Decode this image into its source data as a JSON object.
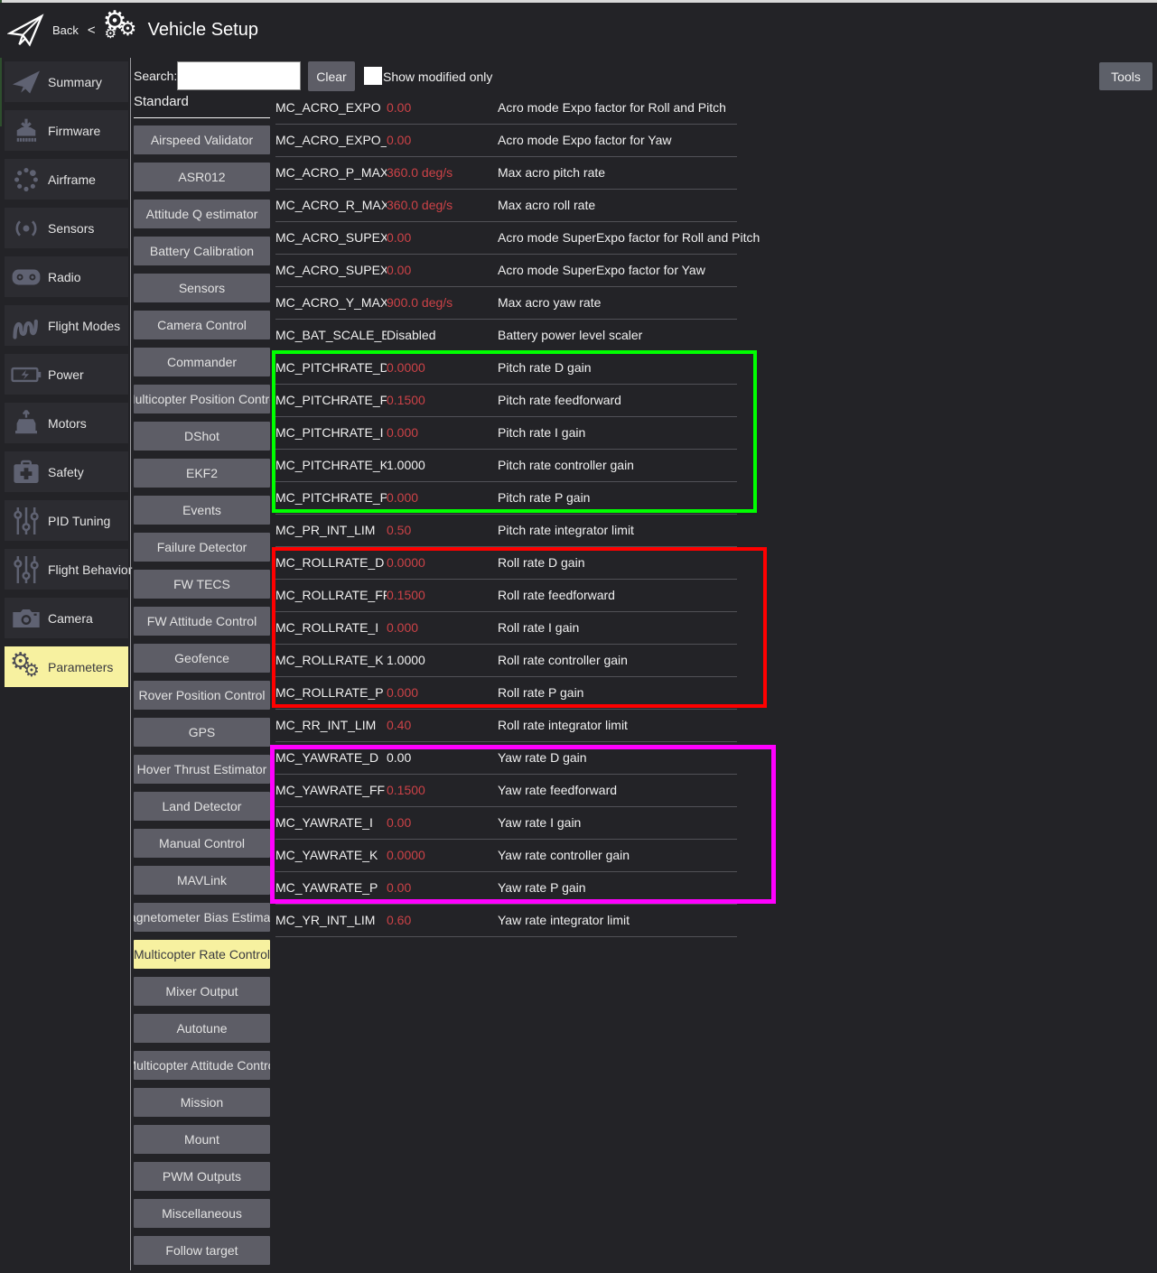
{
  "header": {
    "back_label": "Back",
    "separator": "<",
    "title": "Vehicle Setup"
  },
  "toolbar": {
    "search_label": "Search:",
    "search_value": "",
    "search_placeholder": "",
    "clear_label": "Clear",
    "show_modified_label": "Show modified only",
    "show_modified_checked": false,
    "tools_label": "Tools"
  },
  "sidebar": {
    "selected": "Parameters",
    "items": [
      {
        "label": "Summary",
        "icon": "paper-plane"
      },
      {
        "label": "Firmware",
        "icon": "firmware-download"
      },
      {
        "label": "Airframe",
        "icon": "airframe-dots"
      },
      {
        "label": "Sensors",
        "icon": "signal"
      },
      {
        "label": "Radio",
        "icon": "radio"
      },
      {
        "label": "Flight Modes",
        "icon": "wave"
      },
      {
        "label": "Power",
        "icon": "battery"
      },
      {
        "label": "Motors",
        "icon": "motor"
      },
      {
        "label": "Safety",
        "icon": "first-aid"
      },
      {
        "label": "PID Tuning",
        "icon": "sliders"
      },
      {
        "label": "Flight Behavior",
        "icon": "sliders"
      },
      {
        "label": "Camera",
        "icon": "camera"
      },
      {
        "label": "Parameters",
        "icon": "gears"
      }
    ]
  },
  "groups": {
    "header": "Standard",
    "selected": "Multicopter Rate Control",
    "items": [
      "Airspeed Validator",
      "ASR012",
      "Attitude Q estimator",
      "Battery Calibration",
      "Sensors",
      "Camera Control",
      "Commander",
      "Multicopter Position Control",
      "DShot",
      "EKF2",
      "Events",
      "Failure Detector",
      "FW TECS",
      "FW Attitude Control",
      "Geofence",
      "Rover Position Control",
      "GPS",
      "Hover Thrust Estimator",
      "Land Detector",
      "Manual Control",
      "MAVLink",
      "Magnetometer Bias Estimator",
      "Multicopter Rate Control",
      "Mixer Output",
      "Autotune",
      "Multicopter Attitude Control",
      "Mission",
      "Mount",
      "PWM Outputs",
      "Miscellaneous",
      "Follow target"
    ]
  },
  "parameters": {
    "rows": [
      {
        "name": "MC_ACRO_EXPO",
        "value": "0.00",
        "modified": true,
        "description": "Acro mode Expo factor for Roll and Pitch"
      },
      {
        "name": "MC_ACRO_EXPO_Y",
        "value": "0.00",
        "modified": true,
        "description": "Acro mode Expo factor for Yaw"
      },
      {
        "name": "MC_ACRO_P_MAX",
        "value": "360.0 deg/s",
        "modified": true,
        "description": "Max acro pitch rate"
      },
      {
        "name": "MC_ACRO_R_MAX",
        "value": "360.0 deg/s",
        "modified": true,
        "description": "Max acro roll rate"
      },
      {
        "name": "MC_ACRO_SUPEXPO",
        "value": "0.00",
        "modified": true,
        "description": "Acro mode SuperExpo factor for Roll and Pitch"
      },
      {
        "name": "MC_ACRO_SUPEXPOY",
        "value": "0.00",
        "modified": true,
        "description": "Acro mode SuperExpo factor for Yaw"
      },
      {
        "name": "MC_ACRO_Y_MAX",
        "value": "900.0 deg/s",
        "modified": true,
        "description": "Max acro yaw rate"
      },
      {
        "name": "MC_BAT_SCALE_EN",
        "value": "Disabled",
        "modified": false,
        "description": "Battery power level scaler"
      },
      {
        "name": "MC_PITCHRATE_D",
        "value": "0.0000",
        "modified": true,
        "description": "Pitch rate D gain"
      },
      {
        "name": "MC_PITCHRATE_FF",
        "value": "0.1500",
        "modified": true,
        "description": "Pitch rate feedforward"
      },
      {
        "name": "MC_PITCHRATE_I",
        "value": "0.000",
        "modified": true,
        "description": "Pitch rate I gain"
      },
      {
        "name": "MC_PITCHRATE_K",
        "value": "1.0000",
        "modified": false,
        "description": "Pitch rate controller gain"
      },
      {
        "name": "MC_PITCHRATE_P",
        "value": "0.000",
        "modified": true,
        "description": "Pitch rate P gain"
      },
      {
        "name": "MC_PR_INT_LIM",
        "value": "0.50",
        "modified": true,
        "description": "Pitch rate integrator limit"
      },
      {
        "name": "MC_ROLLRATE_D",
        "value": "0.0000",
        "modified": true,
        "description": "Roll rate D gain"
      },
      {
        "name": "MC_ROLLRATE_FF",
        "value": "0.1500",
        "modified": true,
        "description": "Roll rate feedforward"
      },
      {
        "name": "MC_ROLLRATE_I",
        "value": "0.000",
        "modified": true,
        "description": "Roll rate I gain"
      },
      {
        "name": "MC_ROLLRATE_K",
        "value": "1.0000",
        "modified": false,
        "description": "Roll rate controller gain"
      },
      {
        "name": "MC_ROLLRATE_P",
        "value": "0.000",
        "modified": true,
        "description": "Roll rate P gain"
      },
      {
        "name": "MC_RR_INT_LIM",
        "value": "0.40",
        "modified": true,
        "description": "Roll rate integrator limit"
      },
      {
        "name": "MC_YAWRATE_D",
        "value": "0.00",
        "modified": false,
        "description": "Yaw rate D gain"
      },
      {
        "name": "MC_YAWRATE_FF",
        "value": "0.1500",
        "modified": true,
        "description": "Yaw rate feedforward"
      },
      {
        "name": "MC_YAWRATE_I",
        "value": "0.00",
        "modified": true,
        "description": "Yaw rate I gain"
      },
      {
        "name": "MC_YAWRATE_K",
        "value": "0.0000",
        "modified": true,
        "description": "Yaw rate controller gain"
      },
      {
        "name": "MC_YAWRATE_P",
        "value": "0.00",
        "modified": true,
        "description": "Yaw rate P gain"
      },
      {
        "name": "MC_YR_INT_LIM",
        "value": "0.60",
        "modified": true,
        "description": "Yaw rate integrator limit"
      }
    ]
  },
  "annotations": {
    "green_box": "#00ff00",
    "red_box": "#ff0000",
    "magenta_box": "#ff00ff"
  },
  "colors": {
    "modified_value": "#cc4247",
    "selected_bg": "#f7f1a0",
    "button_bg": "#5d5d66",
    "page_bg": "#232327"
  }
}
